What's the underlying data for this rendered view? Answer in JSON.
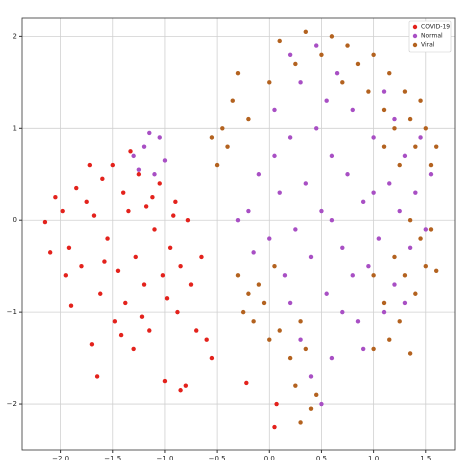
{
  "chart_data": {
    "type": "scatter",
    "xlim": [
      -2.37,
      1.78
    ],
    "ylim": [
      -2.5,
      2.2
    ],
    "xticks": [
      {
        "value": -2,
        "label": "−2.0"
      },
      {
        "value": -1.5,
        "label": "−1.5"
      },
      {
        "value": -1,
        "label": "−1.0"
      },
      {
        "value": -0.5,
        "label": "−0.5"
      },
      {
        "value": 0,
        "label": "0.0"
      },
      {
        "value": 0.5,
        "label": "0.5"
      },
      {
        "value": 1,
        "label": "1.0"
      },
      {
        "value": 1.5,
        "label": "1.5"
      }
    ],
    "yticks": [
      2,
      1,
      0,
      {
        "value": -1,
        "label": "−1"
      },
      {
        "value": -2,
        "label": "−2"
      }
    ],
    "grid": true,
    "legend": "upper right",
    "series": [
      {
        "name": "COVID-19",
        "color": "#e3221c",
        "x": [
          -2.15,
          -2.05,
          -1.98,
          -1.92,
          -1.9,
          -1.85,
          -1.8,
          -1.75,
          -1.7,
          -1.68,
          -1.62,
          -1.6,
          -1.55,
          -1.5,
          -1.48,
          -1.45,
          -1.4,
          -1.38,
          -1.35,
          -1.3,
          -1.28,
          -1.25,
          -1.2,
          -1.18,
          -1.15,
          -1.1,
          -1.05,
          -1.02,
          -1.0,
          -0.95,
          -0.9,
          -0.88,
          -0.85,
          -0.8,
          -0.78,
          -0.75,
          -0.7,
          -0.65,
          -0.6,
          -0.55,
          -2.1,
          -1.95,
          -1.72,
          -1.58,
          -1.42,
          -1.33,
          -1.22,
          -1.12,
          -0.98,
          -0.92,
          0.07,
          0.05,
          -0.22,
          -1.65,
          -0.85
        ],
        "values": [
          -0.02,
          0.25,
          0.1,
          -0.3,
          -0.93,
          0.35,
          -0.5,
          0.2,
          -1.35,
          0.05,
          -0.8,
          0.45,
          -0.2,
          0.6,
          -1.1,
          -0.55,
          0.3,
          -0.9,
          0.1,
          -1.4,
          -0.4,
          0.5,
          -0.7,
          0.15,
          -1.2,
          -0.1,
          0.4,
          -0.6,
          -1.75,
          -0.3,
          0.2,
          -1.0,
          -0.5,
          -1.8,
          0.0,
          -0.7,
          -1.2,
          -0.4,
          -1.3,
          -1.5,
          -0.35,
          -0.6,
          0.6,
          -0.45,
          -1.25,
          0.75,
          -1.05,
          0.25,
          -0.85,
          0.05,
          -2.0,
          -2.25,
          -1.77,
          -1.7,
          -1.85
        ]
      },
      {
        "name": "Normal",
        "color": "#a84fc4",
        "x": [
          -0.2,
          -0.1,
          0.0,
          0.05,
          0.1,
          0.15,
          0.2,
          0.25,
          0.3,
          0.35,
          0.4,
          0.45,
          0.5,
          0.55,
          0.6,
          0.65,
          0.7,
          0.75,
          0.8,
          0.85,
          0.9,
          0.95,
          1.0,
          1.05,
          1.1,
          1.15,
          1.2,
          1.25,
          1.3,
          1.35,
          1.4,
          1.45,
          1.5,
          0.3,
          0.4,
          0.5,
          0.6,
          0.2,
          0.7,
          0.9,
          -0.3,
          -0.15,
          0.05,
          0.2,
          0.45,
          0.6,
          0.8,
          1.0,
          1.1,
          1.3,
          -1.3,
          -1.2,
          -1.1,
          -1.05,
          -1.25,
          -1.0,
          -1.15,
          1.2,
          1.55,
          0.55
        ],
        "values": [
          0.1,
          0.5,
          -0.2,
          1.2,
          0.3,
          -0.6,
          0.9,
          -0.1,
          1.5,
          0.4,
          -0.4,
          1.0,
          0.1,
          -0.8,
          0.7,
          1.6,
          -0.3,
          0.5,
          1.2,
          -1.1,
          0.2,
          -0.5,
          0.9,
          -0.2,
          1.4,
          0.4,
          -0.7,
          0.1,
          0.7,
          -0.3,
          0.3,
          0.9,
          -0.1,
          -1.3,
          -1.7,
          -2.0,
          -1.5,
          -0.9,
          -1.0,
          -1.4,
          0.0,
          -0.35,
          0.7,
          1.8,
          1.9,
          0.0,
          -0.6,
          0.3,
          -1.0,
          -0.9,
          0.7,
          0.8,
          0.5,
          0.9,
          0.55,
          0.65,
          0.95,
          1.1,
          0.5,
          1.3
        ]
      },
      {
        "name": "Viral",
        "color": "#b3621f",
        "x": [
          -0.5,
          -0.45,
          -0.4,
          -0.35,
          -0.3,
          -0.2,
          0.1,
          0.25,
          0.35,
          0.5,
          0.6,
          0.7,
          0.75,
          0.85,
          0.95,
          1.0,
          1.1,
          1.15,
          1.2,
          1.3,
          1.35,
          1.4,
          1.45,
          1.5,
          1.55,
          1.6,
          1.25,
          1.1,
          -0.55,
          0.0,
          -0.3,
          -0.2,
          -0.15,
          -0.1,
          -0.05,
          0.0,
          0.05,
          0.1,
          0.2,
          0.25,
          0.3,
          0.35,
          0.4,
          0.45,
          0.3,
          -0.25,
          1.0,
          1.1,
          1.15,
          1.2,
          1.25,
          1.3,
          1.35,
          1.4,
          1.45,
          1.5,
          1.55,
          1.6,
          1.0,
          1.35
        ],
        "values": [
          0.6,
          1.0,
          0.8,
          1.3,
          1.6,
          1.1,
          1.95,
          1.7,
          2.05,
          1.8,
          2.0,
          1.5,
          1.9,
          1.7,
          1.4,
          1.8,
          1.2,
          1.6,
          1.0,
          1.4,
          1.1,
          0.8,
          1.3,
          1.0,
          0.6,
          0.8,
          0.6,
          0.8,
          0.9,
          1.5,
          -0.6,
          -0.8,
          -1.1,
          -0.7,
          -0.9,
          -1.3,
          -0.5,
          -1.2,
          -1.5,
          -1.8,
          -1.1,
          -1.4,
          -2.05,
          -1.9,
          -2.2,
          -1.0,
          -0.6,
          -0.9,
          -1.3,
          -0.4,
          -1.1,
          -0.6,
          -1.45,
          -0.8,
          -0.2,
          -0.5,
          -0.1,
          -0.55,
          -1.4,
          0.0
        ]
      }
    ]
  }
}
